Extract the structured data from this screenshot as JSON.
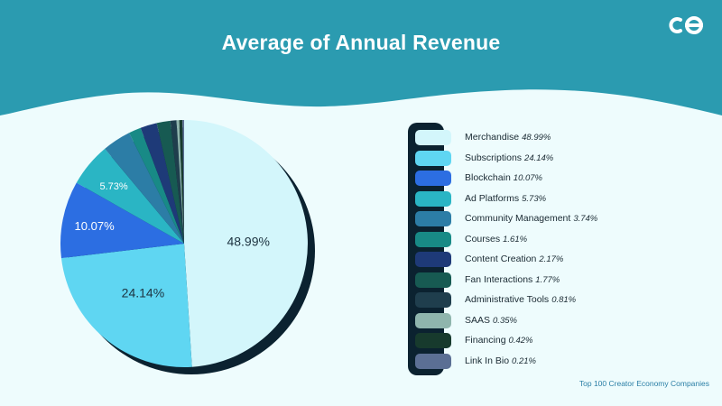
{
  "colors": {
    "header": "#2b9bb0",
    "background": "#eefcfd",
    "shadow": "#0b2230"
  },
  "logo": {
    "icon": "eo-logo-icon"
  },
  "chart_data": {
    "type": "pie",
    "title": "Average of Annual Revenue",
    "slices": [
      {
        "label": "Merchandise",
        "value": 48.99,
        "pct_text": "48.99%",
        "color": "#d3f6fb",
        "legend_pct": "48.99%",
        "show_label": true,
        "label_color": "#1d3340"
      },
      {
        "label": "Subscriptions",
        "value": 24.14,
        "pct_text": "24.14%",
        "color": "#5fd6f2",
        "legend_pct": "24.14%",
        "show_label": true,
        "label_color": "#1d3340"
      },
      {
        "label": "Blockchain",
        "value": 10.07,
        "pct_text": "10.07%",
        "color": "#2c6ee2",
        "legend_pct": "10.07%",
        "show_label": true,
        "label_color": "#ffffff"
      },
      {
        "label": "Ad Platforms",
        "value": 5.73,
        "pct_text": "5.73%",
        "color": "#2ab5c4",
        "legend_pct": "5.73%",
        "show_label": true,
        "label_color": "#ffffff"
      },
      {
        "label": "Community Management",
        "value": 3.74,
        "pct_text": "",
        "color": "#2c7da6",
        "legend_pct": "3.74%",
        "show_label": false,
        "label_color": "#ffffff"
      },
      {
        "label": "Courses",
        "value": 1.61,
        "pct_text": "",
        "color": "#188a86",
        "legend_pct": "1.61%",
        "show_label": false,
        "label_color": "#ffffff"
      },
      {
        "label": "Content Creation",
        "value": 2.17,
        "pct_text": "",
        "color": "#1e3a78",
        "legend_pct": "2.17%",
        "show_label": false,
        "label_color": "#ffffff"
      },
      {
        "label": "Fan Interactions",
        "value": 1.77,
        "pct_text": "",
        "color": "#175a52",
        "legend_pct": "1.77%",
        "show_label": false,
        "label_color": "#ffffff"
      },
      {
        "label": "Administrative Tools",
        "value": 0.81,
        "pct_text": "",
        "color": "#1f3e4d",
        "legend_pct": "0.81%",
        "show_label": false,
        "label_color": "#ffffff"
      },
      {
        "label": "SAAS",
        "value": 0.35,
        "pct_text": "",
        "color": "#8fb5ad",
        "legend_pct": "0.35%",
        "show_label": false,
        "label_color": "#ffffff"
      },
      {
        "label": "Financing",
        "value": 0.42,
        "pct_text": "",
        "color": "#173a2d",
        "legend_pct": "0.42%",
        "show_label": false,
        "label_color": "#ffffff"
      },
      {
        "label": "Link In Bio",
        "value": 0.21,
        "pct_text": "",
        "color": "#5b6f94",
        "legend_pct": "0.21%",
        "show_label": false,
        "label_color": "#ffffff"
      }
    ],
    "legend_position": "right",
    "source": "Top 100 Creator Economy Companies"
  }
}
